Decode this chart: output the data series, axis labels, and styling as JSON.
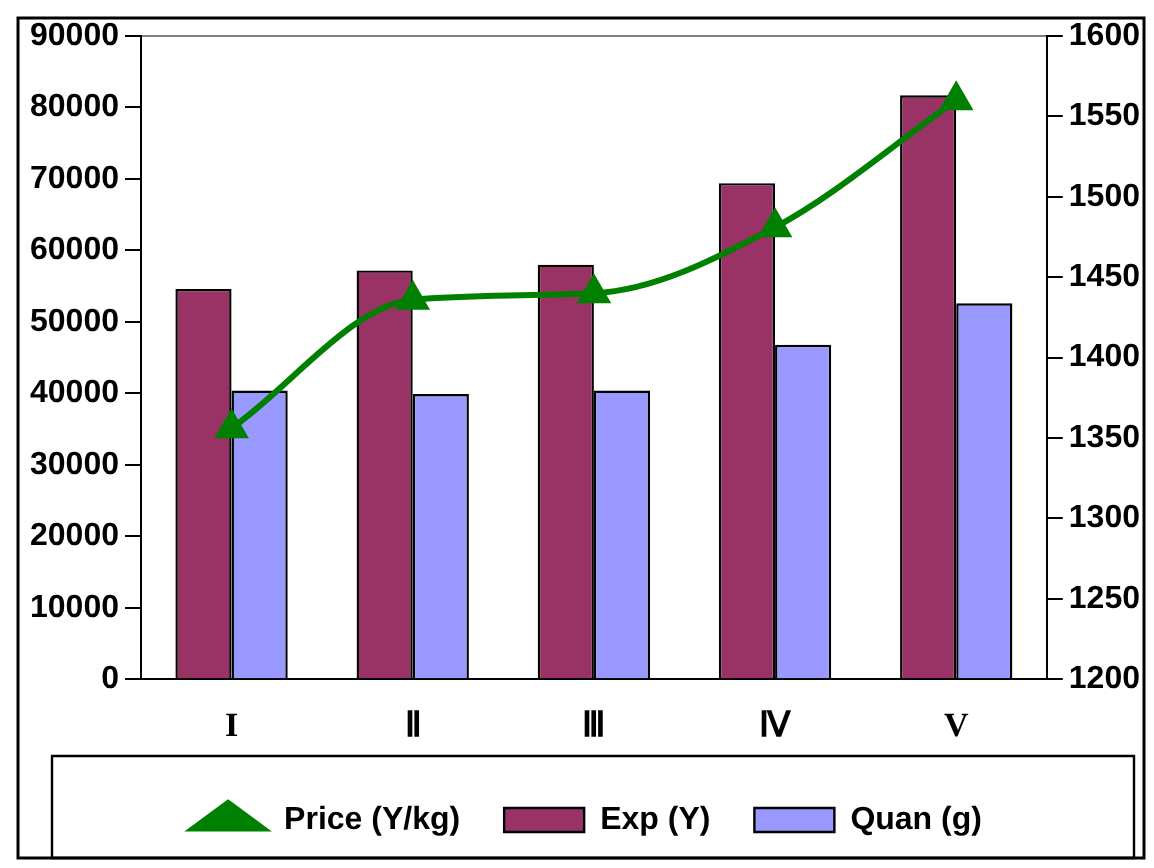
{
  "chart_data": {
    "type": "bar",
    "categories": [
      "I",
      "Ⅱ",
      "Ⅲ",
      "Ⅳ",
      "V"
    ],
    "series": [
      {
        "name": "Exp (Y)",
        "color": "#993366",
        "values": [
          54600,
          57200,
          58000,
          69400,
          81700
        ]
      },
      {
        "name": "Quan (g)",
        "color": "#9999ff",
        "values": [
          40400,
          39900,
          40400,
          46800,
          52600
        ]
      },
      {
        "name": "Price (Y/kg)",
        "type": "line",
        "axis": "y2",
        "color": "#008000",
        "marker": "triangle",
        "values": [
          1356,
          1436,
          1440,
          1481,
          1560
        ]
      }
    ],
    "ylim": [
      0,
      90000
    ],
    "yticks": [
      0,
      10000,
      20000,
      30000,
      40000,
      50000,
      60000,
      70000,
      80000,
      90000
    ],
    "y2lim": [
      1200,
      1600
    ],
    "y2ticks": [
      1200,
      1250,
      1300,
      1350,
      1400,
      1450,
      1500,
      1550,
      1600
    ],
    "grid": false,
    "legend": "bottom"
  }
}
